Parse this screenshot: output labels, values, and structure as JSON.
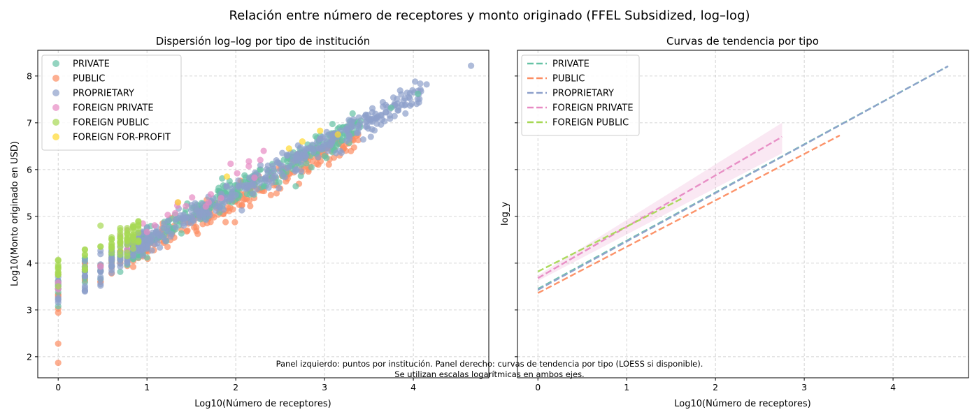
{
  "figure": {
    "suptitle": "Relación entre número de receptores y monto originado (FFEL Subsidized, log–log)",
    "note_line1": "Panel izquierdo: puntos por institución. Panel derecho: curvas de tendencia por tipo (LOESS si disponible).",
    "note_line2": "Se utilizan escalas logarítmicas en ambos ejes."
  },
  "colors": {
    "PRIVATE": "#66c2a5",
    "PUBLIC": "#fc8d62",
    "PROPRIETARY": "#8da0cb",
    "FOREIGN PRIVATE": "#e78ac3",
    "FOREIGN PUBLIC": "#a6d854",
    "FOREIGN FOR-PROFIT": "#ffd92f"
  },
  "chart_data": [
    {
      "type": "scatter",
      "title": "Dispersión log–log por tipo de institución",
      "xlabel": "Log10(Número de receptores)",
      "ylabel": "Log10(Monto originado en USD)",
      "xlim": [
        -0.23,
        4.85
      ],
      "ylim": [
        1.55,
        8.55
      ],
      "xticks": [
        0,
        1,
        2,
        3,
        4
      ],
      "yticks": [
        2,
        3,
        4,
        5,
        6,
        7,
        8
      ],
      "grid": true,
      "legend_position": "top-left",
      "series": [
        {
          "name": "PRIVATE",
          "approx_trend": {
            "intercept": 3.45,
            "slope": 1.03,
            "x_range": [
              0,
              3.85
            ]
          }
        },
        {
          "name": "PUBLIC",
          "approx_trend": {
            "intercept": 3.38,
            "slope": 0.99,
            "x_range": [
              0,
              3.4
            ]
          }
        },
        {
          "name": "PROPRIETARY",
          "approx_trend": {
            "intercept": 3.44,
            "slope": 1.03,
            "x_range": [
              0,
              4.65
            ]
          }
        },
        {
          "name": "FOREIGN PRIVATE",
          "approx_trend": {
            "intercept": 3.68,
            "slope": 1.1,
            "x_range": [
              0,
              2.75
            ]
          }
        },
        {
          "name": "FOREIGN PUBLIC",
          "approx_trend": {
            "intercept": 3.82,
            "slope": 0.95,
            "x_range": [
              0,
              1.65
            ]
          }
        },
        {
          "name": "FOREIGN FOR-PROFIT",
          "points": [
            [
              2.75,
              6.6
            ],
            [
              2.95,
              6.83
            ],
            [
              3.15,
              6.75
            ],
            [
              2.6,
              6.45
            ],
            [
              1.35,
              5.3
            ],
            [
              1.9,
              5.85
            ]
          ]
        }
      ],
      "extreme_points": [
        {
          "series": "PROPRIETARY",
          "x": 4.65,
          "y": 8.22
        },
        {
          "series": "PROPRIETARY",
          "x": 4.15,
          "y": 7.82
        },
        {
          "series": "PRIVATE",
          "x": 4.05,
          "y": 7.62
        },
        {
          "series": "PRIVATE",
          "x": 3.75,
          "y": 7.32
        },
        {
          "series": "PUBLIC",
          "x": 0,
          "y": 1.87
        },
        {
          "series": "PUBLIC",
          "x": 0,
          "y": 2.28
        }
      ]
    },
    {
      "type": "line",
      "title": "Curvas de tendencia por tipo",
      "xlabel": "Log10(Número de receptores)",
      "ylabel": "log_y",
      "xlim": [
        -0.23,
        4.85
      ],
      "ylim": [
        1.55,
        8.55
      ],
      "xticks": [
        0,
        1,
        2,
        3,
        4
      ],
      "yticks": [
        2,
        3,
        4,
        5,
        6,
        7,
        8
      ],
      "ytick_labels_shown": false,
      "grid": true,
      "legend_position": "top-left",
      "series": [
        {
          "name": "PRIVATE",
          "x": [
            0,
            4.62
          ],
          "y": [
            3.45,
            8.21
          ]
        },
        {
          "name": "PUBLIC",
          "x": [
            0,
            3.4
          ],
          "y": [
            3.36,
            6.73
          ]
        },
        {
          "name": "PROPRIETARY",
          "x": [
            0,
            4.62
          ],
          "y": [
            3.43,
            8.21
          ]
        },
        {
          "name": "FOREIGN PRIVATE",
          "x": [
            0,
            2.75
          ],
          "y": [
            3.68,
            6.7
          ],
          "band": {
            "x": [
              0,
              2.75
            ],
            "lower": [
              3.62,
              6.35
            ],
            "upper": [
              3.74,
              7.0
            ]
          }
        },
        {
          "name": "FOREIGN PUBLIC",
          "x": [
            0,
            1.62
          ],
          "y": [
            3.82,
            5.38
          ]
        }
      ]
    }
  ]
}
